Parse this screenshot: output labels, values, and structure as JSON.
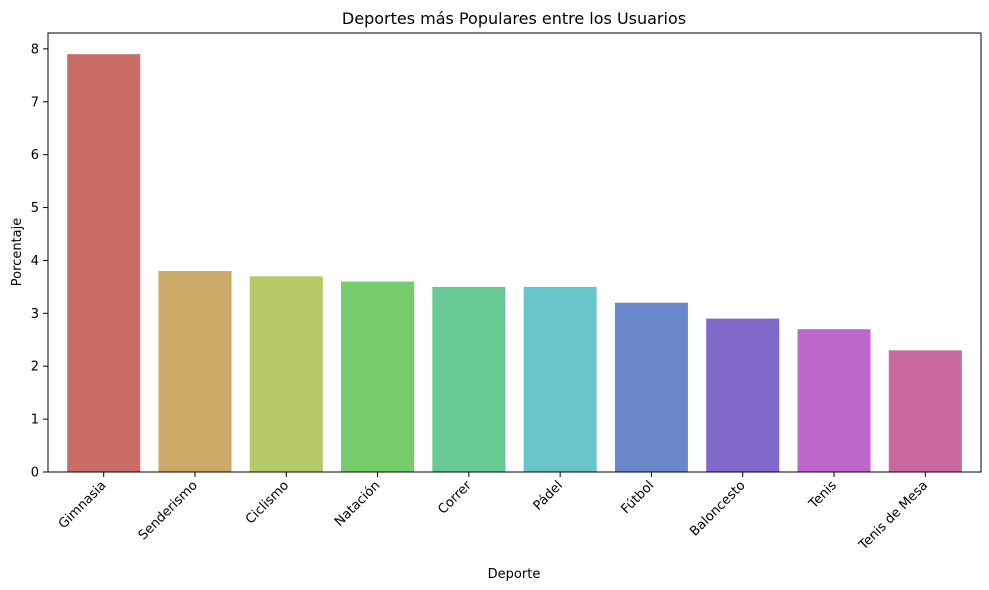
{
  "chart_data": {
    "type": "bar",
    "title": "Deportes más Populares entre los Usuarios",
    "xlabel": "Deporte",
    "ylabel": "Porcentaje",
    "categories": [
      "Gimnasia",
      "Senderismo",
      "Ciclismo",
      "Natación",
      "Correr",
      "Pádel",
      "Fútbol",
      "Baloncesto",
      "Tenis",
      "Tenis de Mesa"
    ],
    "values": [
      7.9,
      3.8,
      3.7,
      3.6,
      3.5,
      3.5,
      3.2,
      2.9,
      2.7,
      2.3
    ],
    "colors": [
      "#ca6d67",
      "#cba966",
      "#b3ca67",
      "#77cd6b",
      "#67c994",
      "#68c6cb",
      "#6888ca",
      "#8168cb",
      "#bb68ca",
      "#c9689e"
    ],
    "yticks": [
      "0",
      "1",
      "2",
      "3",
      "4",
      "5",
      "6",
      "7",
      "8"
    ],
    "ylim": [
      0,
      8.3
    ],
    "grid": false,
    "legend": false
  }
}
